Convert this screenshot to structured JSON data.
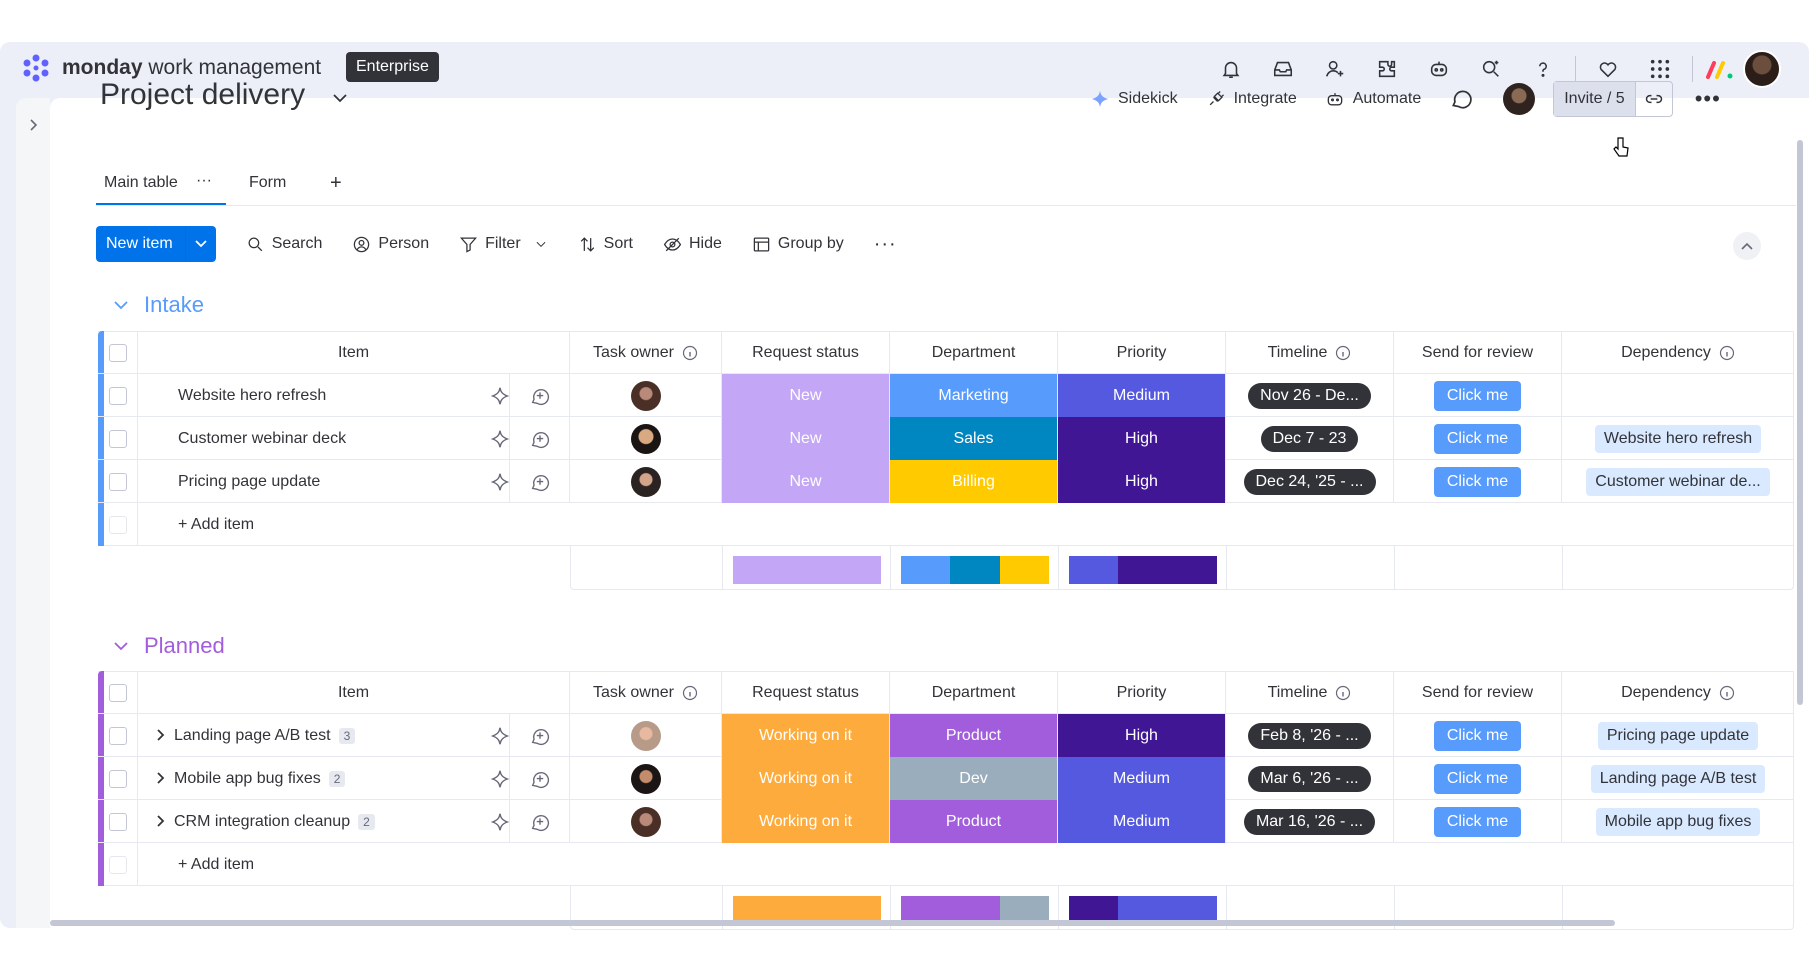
{
  "app": {
    "brand_bold": "monday",
    "brand_rest": " work management",
    "plan": "Enterprise"
  },
  "header_icons": [
    "bell-icon",
    "inbox-icon",
    "invite-members-icon",
    "apps-icon",
    "bot-icon",
    "search-icon",
    "help-icon",
    "heart-icon",
    "grid-menu-icon"
  ],
  "board": {
    "title": "Project delivery",
    "actions": {
      "sidekick": "Sidekick",
      "integrate": "Integrate",
      "automate": "Automate",
      "invite": "Invite / 5"
    },
    "tabs": {
      "main": "Main table",
      "form": "Form",
      "add": "+"
    }
  },
  "toolbar": {
    "new_item": "New item",
    "search": "Search",
    "person": "Person",
    "filter": "Filter",
    "sort": "Sort",
    "hide": "Hide",
    "group_by": "Group by"
  },
  "columns": {
    "item": "Item",
    "task_owner": "Task owner",
    "request_status": "Request status",
    "department": "Department",
    "priority": "Priority",
    "timeline": "Timeline",
    "send_for_review": "Send for review",
    "dependency": "Dependency"
  },
  "colors": {
    "accent": "#0073ea",
    "intake_group": "#579bfc",
    "planned_group": "#a25ddc",
    "status_new": "#c3a6f5",
    "status_working": "#fdab3d",
    "dept_marketing": "#579bfc",
    "dept_sales": "#0086c0",
    "dept_billing": "#ffcb00",
    "dept_product": "#a25ddc",
    "dept_dev": "#9aadbd",
    "priority_medium": "#5559df",
    "priority_high": "#401694"
  },
  "groups": [
    {
      "title": "Intake",
      "add_item": "+ Add item",
      "rows": [
        {
          "item": "Website hero refresh",
          "count": "",
          "status": "New",
          "department": "Marketing",
          "priority": "Medium",
          "timeline": "Nov 26 - De...",
          "review": "Click me",
          "dependency": ""
        },
        {
          "item": "Customer webinar deck",
          "count": "",
          "status": "New",
          "department": "Sales",
          "priority": "High",
          "timeline": "Dec 7 - 23",
          "review": "Click me",
          "dependency": "Website hero refresh"
        },
        {
          "item": "Pricing page update",
          "count": "",
          "status": "New",
          "department": "Billing",
          "priority": "High",
          "timeline": "Dec 24, '25 - ...",
          "review": "Click me",
          "dependency": "Customer webinar de..."
        }
      ]
    },
    {
      "title": "Planned",
      "add_item": "+ Add item",
      "rows": [
        {
          "item": "Landing page A/B test",
          "count": "3",
          "status": "Working on it",
          "department": "Product",
          "priority": "High",
          "timeline": "Feb 8, '26 - ...",
          "review": "Click me",
          "dependency": "Pricing page update"
        },
        {
          "item": "Mobile app bug fixes",
          "count": "2",
          "status": "Working on it",
          "department": "Dev",
          "priority": "Medium",
          "timeline": "Mar 6, '26 - ...",
          "review": "Click me",
          "dependency": "Landing page A/B test"
        },
        {
          "item": "CRM integration cleanup",
          "count": "2",
          "status": "Working on it",
          "department": "Product",
          "priority": "Medium",
          "timeline": "Mar 16, '26 - ...",
          "review": "Click me",
          "dependency": "Mobile app bug fixes"
        }
      ]
    }
  ]
}
